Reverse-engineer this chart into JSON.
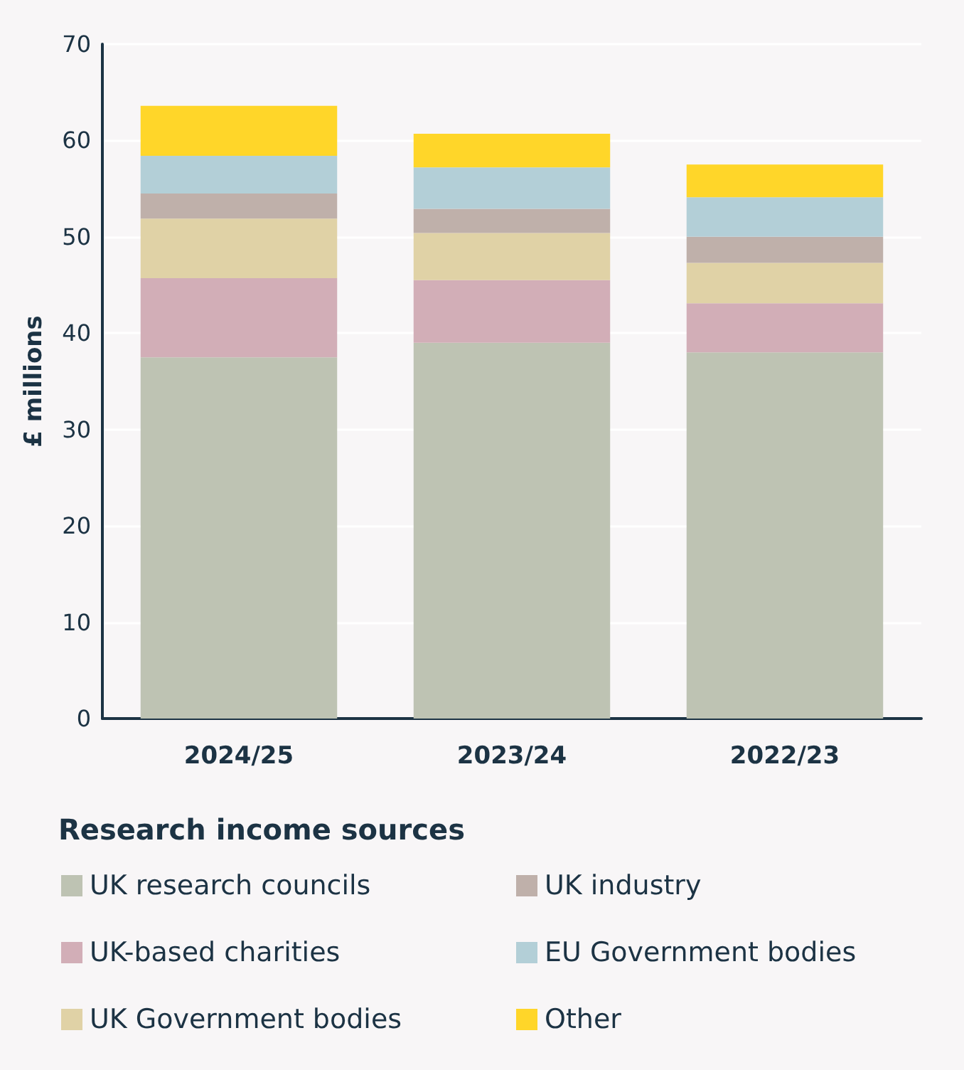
{
  "chart_data": {
    "type": "bar",
    "stacked": true,
    "ylabel": "£ millions",
    "legend_title": "Research income sources",
    "categories": [
      "2024/25",
      "2023/24",
      "2022/23"
    ],
    "series": [
      {
        "name": "UK research councils",
        "color": "#bec3b3",
        "values": [
          37.5,
          39.0,
          38.0
        ]
      },
      {
        "name": "UK-based charities",
        "color": "#d2aeb7",
        "values": [
          8.2,
          6.5,
          5.1
        ]
      },
      {
        "name": "UK Government bodies",
        "color": "#e0d2a6",
        "values": [
          6.2,
          4.9,
          4.2
        ]
      },
      {
        "name": "UK industry",
        "color": "#bfb0aa",
        "values": [
          2.6,
          2.5,
          2.7
        ]
      },
      {
        "name": "EU Government bodies",
        "color": "#b3cfd7",
        "values": [
          3.9,
          4.3,
          4.1
        ]
      },
      {
        "name": "Other",
        "color": "#ffd629",
        "values": [
          5.2,
          3.5,
          3.4
        ]
      }
    ],
    "ylim": [
      0,
      70
    ],
    "yticks": [
      0,
      10,
      20,
      30,
      40,
      50,
      60,
      70
    ],
    "grid": "y",
    "legend": "bottom"
  }
}
